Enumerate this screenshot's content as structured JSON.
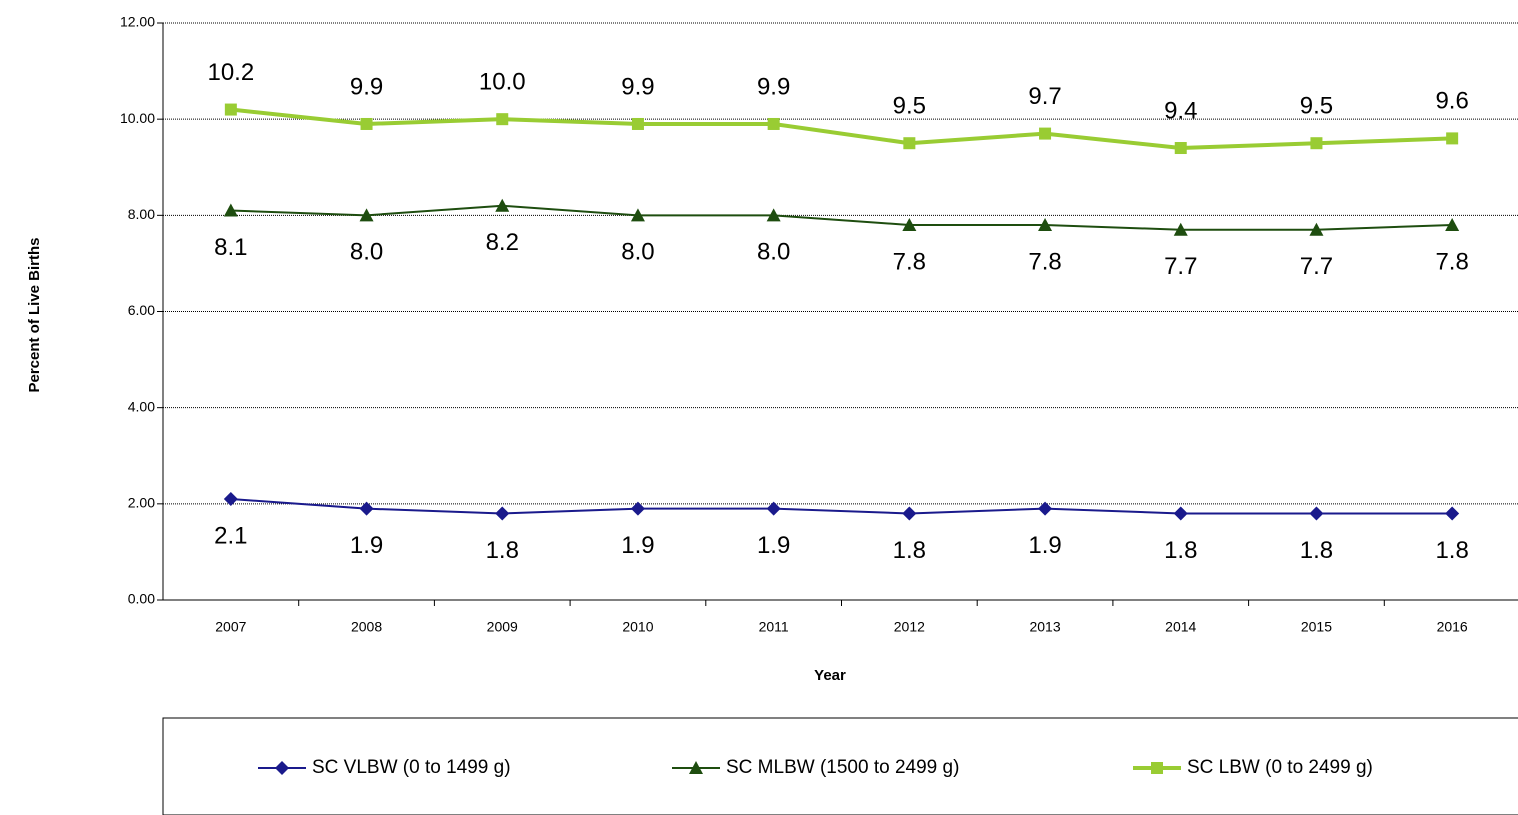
{
  "chart_data": {
    "type": "line",
    "x_label": "Year",
    "y_label": "Percent of Live Births",
    "categories": [
      "2007",
      "2008",
      "2009",
      "2010",
      "2011",
      "2012",
      "2013",
      "2014",
      "2015",
      "2016"
    ],
    "series": [
      {
        "name": "SC VLBW (0 to 1499 g)",
        "color": "#1a1a8c",
        "marker": "diamond",
        "label_position": "below",
        "values": [
          2.1,
          1.9,
          1.8,
          1.9,
          1.9,
          1.8,
          1.9,
          1.8,
          1.8,
          1.8
        ],
        "value_labels": [
          "2.1",
          "1.9",
          "1.8",
          "1.9",
          "1.9",
          "1.8",
          "1.9",
          "1.8",
          "1.8",
          "1.8"
        ]
      },
      {
        "name": "SC MLBW (1500 to 2499 g)",
        "color": "#1e4d0f",
        "marker": "triangle",
        "label_position": "below",
        "values": [
          8.1,
          8.0,
          8.2,
          8.0,
          8.0,
          7.8,
          7.8,
          7.7,
          7.7,
          7.8
        ],
        "value_labels": [
          "8.1",
          "8.0",
          "8.2",
          "8.0",
          "8.0",
          "7.8",
          "7.8",
          "7.7",
          "7.7",
          "7.8"
        ]
      },
      {
        "name": "SC LBW (0 to 2499 g)",
        "color": "#99cc33",
        "marker": "square",
        "label_position": "above",
        "values": [
          10.2,
          9.9,
          10.0,
          9.9,
          9.9,
          9.5,
          9.7,
          9.4,
          9.5,
          9.6
        ],
        "value_labels": [
          "10.2",
          "9.9",
          "10.0",
          "9.9",
          "9.9",
          "9.5",
          "9.7",
          "9.4",
          "9.5",
          "9.6"
        ]
      }
    ],
    "ylim": [
      0,
      12
    ],
    "yticks": [
      {
        "value": 0,
        "label": "0.00"
      },
      {
        "value": 2,
        "label": "2.00"
      },
      {
        "value": 4,
        "label": "4.00"
      },
      {
        "value": 6,
        "label": "6.00"
      },
      {
        "value": 8,
        "label": "8.00"
      },
      {
        "value": 10,
        "label": "10.00"
      },
      {
        "value": 12,
        "label": "12.00"
      }
    ],
    "grid": true,
    "legend": "bottom"
  }
}
